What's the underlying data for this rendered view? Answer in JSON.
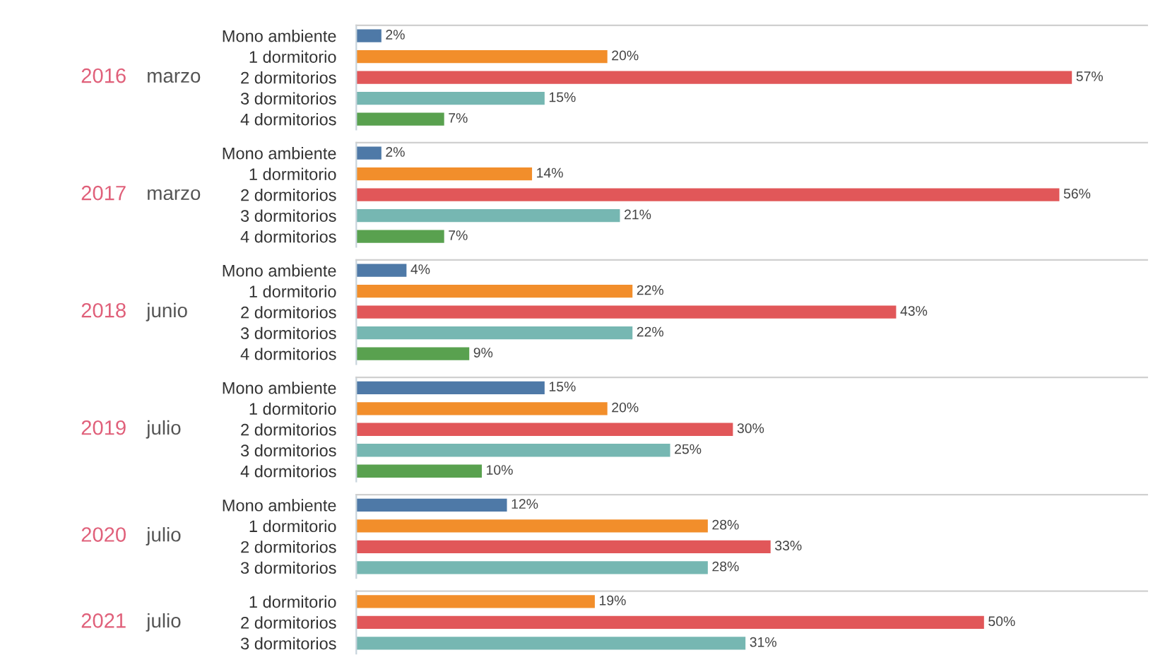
{
  "chart_data": [
    {
      "type": "bar",
      "orientation": "horizontal",
      "title": "2016",
      "subtitle": "marzo",
      "categories": [
        "Mono ambiente",
        "1 dormitorio",
        "2 dormitorios",
        "3 dormitorios",
        "4 dormitorios"
      ],
      "values": [
        2,
        20,
        57,
        15,
        7
      ],
      "value_labels": [
        "2%",
        "20%",
        "57%",
        "15%",
        "7%"
      ],
      "colors": [
        "#4e79a7",
        "#f28e2b",
        "#e15759",
        "#76b7b2",
        "#59a14f"
      ],
      "xlim": [
        0,
        63
      ],
      "tick_labels": "y",
      "grid": false
    },
    {
      "type": "bar",
      "orientation": "horizontal",
      "title": "2017",
      "subtitle": "marzo",
      "categories": [
        "Mono ambiente",
        "1 dormitorio",
        "2 dormitorios",
        "3 dormitorios",
        "4 dormitorios"
      ],
      "values": [
        2,
        14,
        56,
        21,
        7
      ],
      "value_labels": [
        "2%",
        "14%",
        "56%",
        "21%",
        "7%"
      ],
      "colors": [
        "#4e79a7",
        "#f28e2b",
        "#e15759",
        "#76b7b2",
        "#59a14f"
      ],
      "xlim": [
        0,
        63
      ],
      "tick_labels": "y",
      "grid": false
    },
    {
      "type": "bar",
      "orientation": "horizontal",
      "title": "2018",
      "subtitle": "junio",
      "categories": [
        "Mono ambiente",
        "1 dormitorio",
        "2 dormitorios",
        "3 dormitorios",
        "4 dormitorios"
      ],
      "values": [
        4,
        22,
        43,
        22,
        9
      ],
      "value_labels": [
        "4%",
        "22%",
        "43%",
        "22%",
        "9%"
      ],
      "colors": [
        "#4e79a7",
        "#f28e2b",
        "#e15759",
        "#76b7b2",
        "#59a14f"
      ],
      "xlim": [
        0,
        63
      ],
      "tick_labels": "y",
      "grid": false
    },
    {
      "type": "bar",
      "orientation": "horizontal",
      "title": "2019",
      "subtitle": "julio",
      "categories": [
        "Mono ambiente",
        "1 dormitorio",
        "2 dormitorios",
        "3 dormitorios",
        "4 dormitorios"
      ],
      "values": [
        15,
        20,
        30,
        25,
        10
      ],
      "value_labels": [
        "15%",
        "20%",
        "30%",
        "25%",
        "10%"
      ],
      "colors": [
        "#4e79a7",
        "#f28e2b",
        "#e15759",
        "#76b7b2",
        "#59a14f"
      ],
      "xlim": [
        0,
        63
      ],
      "tick_labels": "y",
      "grid": false
    },
    {
      "type": "bar",
      "orientation": "horizontal",
      "title": "2020",
      "subtitle": "julio",
      "categories": [
        "Mono ambiente",
        "1 dormitorio",
        "2 dormitorios",
        "3 dormitorios"
      ],
      "values": [
        12,
        28,
        33,
        28
      ],
      "value_labels": [
        "12%",
        "28%",
        "33%",
        "28%"
      ],
      "colors": [
        "#4e79a7",
        "#f28e2b",
        "#e15759",
        "#76b7b2"
      ],
      "xlim": [
        0,
        63
      ],
      "tick_labels": "y",
      "grid": false
    },
    {
      "type": "bar",
      "orientation": "horizontal",
      "title": "2021",
      "subtitle": "julio",
      "categories": [
        "1 dormitorio",
        "2 dormitorios",
        "3 dormitorios"
      ],
      "values": [
        19,
        50,
        31
      ],
      "value_labels": [
        "19%",
        "50%",
        "31%"
      ],
      "colors": [
        "#f28e2b",
        "#e15759",
        "#76b7b2"
      ],
      "xlim": [
        0,
        63
      ],
      "tick_labels": "y",
      "grid": false
    }
  ]
}
